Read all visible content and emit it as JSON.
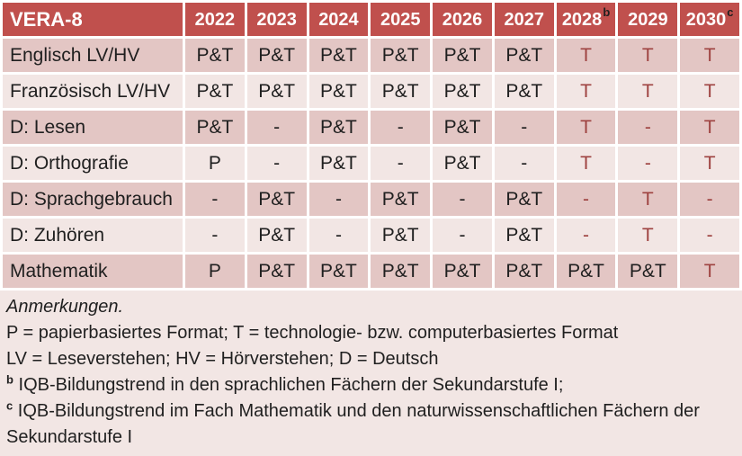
{
  "colors": {
    "header_bg": "#c0504d",
    "band_dark": "#e3c6c4",
    "band_light": "#f2e6e4",
    "highlight_text": "#9e4240",
    "text": "#1f1f1f",
    "grid_line": "#ffffff"
  },
  "table": {
    "header": {
      "label": "VERA-8",
      "years": [
        {
          "text": "2022",
          "sup": ""
        },
        {
          "text": "2023",
          "sup": ""
        },
        {
          "text": "2024",
          "sup": ""
        },
        {
          "text": "2025",
          "sup": ""
        },
        {
          "text": "2026",
          "sup": ""
        },
        {
          "text": "2027",
          "sup": ""
        },
        {
          "text": "2028",
          "sup": "b"
        },
        {
          "text": "2029",
          "sup": ""
        },
        {
          "text": "2030",
          "sup": "c"
        }
      ]
    },
    "rows": [
      {
        "label": "Englisch LV/HV",
        "cells": [
          {
            "text": "P&T",
            "highlight": false
          },
          {
            "text": "P&T",
            "highlight": false
          },
          {
            "text": "P&T",
            "highlight": false
          },
          {
            "text": "P&T",
            "highlight": false
          },
          {
            "text": "P&T",
            "highlight": false
          },
          {
            "text": "P&T",
            "highlight": false
          },
          {
            "text": "T",
            "highlight": true
          },
          {
            "text": "T",
            "highlight": true
          },
          {
            "text": "T",
            "highlight": true
          }
        ]
      },
      {
        "label": "Französisch LV/HV",
        "cells": [
          {
            "text": "P&T",
            "highlight": false
          },
          {
            "text": "P&T",
            "highlight": false
          },
          {
            "text": "P&T",
            "highlight": false
          },
          {
            "text": "P&T",
            "highlight": false
          },
          {
            "text": "P&T",
            "highlight": false
          },
          {
            "text": "P&T",
            "highlight": false
          },
          {
            "text": "T",
            "highlight": true
          },
          {
            "text": "T",
            "highlight": true
          },
          {
            "text": "T",
            "highlight": true
          }
        ]
      },
      {
        "label": "D: Lesen",
        "cells": [
          {
            "text": "P&T",
            "highlight": false
          },
          {
            "text": "-",
            "highlight": false
          },
          {
            "text": "P&T",
            "highlight": false
          },
          {
            "text": "-",
            "highlight": false
          },
          {
            "text": "P&T",
            "highlight": false
          },
          {
            "text": "-",
            "highlight": false
          },
          {
            "text": "T",
            "highlight": true
          },
          {
            "text": "-",
            "highlight": true
          },
          {
            "text": "T",
            "highlight": true
          }
        ]
      },
      {
        "label": "D: Orthografie",
        "cells": [
          {
            "text": "P",
            "highlight": false
          },
          {
            "text": "-",
            "highlight": false
          },
          {
            "text": "P&T",
            "highlight": false
          },
          {
            "text": "-",
            "highlight": false
          },
          {
            "text": "P&T",
            "highlight": false
          },
          {
            "text": "-",
            "highlight": false
          },
          {
            "text": "T",
            "highlight": true
          },
          {
            "text": "-",
            "highlight": true
          },
          {
            "text": "T",
            "highlight": true
          }
        ]
      },
      {
        "label": "D: Sprachgebrauch",
        "cells": [
          {
            "text": "-",
            "highlight": false
          },
          {
            "text": "P&T",
            "highlight": false
          },
          {
            "text": "-",
            "highlight": false
          },
          {
            "text": "P&T",
            "highlight": false
          },
          {
            "text": "-",
            "highlight": false
          },
          {
            "text": "P&T",
            "highlight": false
          },
          {
            "text": "-",
            "highlight": true
          },
          {
            "text": "T",
            "highlight": true
          },
          {
            "text": "-",
            "highlight": true
          }
        ]
      },
      {
        "label": "D: Zuhören",
        "cells": [
          {
            "text": "-",
            "highlight": false
          },
          {
            "text": "P&T",
            "highlight": false
          },
          {
            "text": "-",
            "highlight": false
          },
          {
            "text": "P&T",
            "highlight": false
          },
          {
            "text": "-",
            "highlight": false
          },
          {
            "text": "P&T",
            "highlight": false
          },
          {
            "text": "-",
            "highlight": true
          },
          {
            "text": "T",
            "highlight": true
          },
          {
            "text": "-",
            "highlight": true
          }
        ]
      },
      {
        "label": "Mathematik",
        "cells": [
          {
            "text": "P",
            "highlight": false
          },
          {
            "text": "P&T",
            "highlight": false
          },
          {
            "text": "P&T",
            "highlight": false
          },
          {
            "text": "P&T",
            "highlight": false
          },
          {
            "text": "P&T",
            "highlight": false
          },
          {
            "text": "P&T",
            "highlight": false
          },
          {
            "text": "P&T",
            "highlight": false
          },
          {
            "text": "P&T",
            "highlight": false
          },
          {
            "text": "T",
            "highlight": true
          }
        ]
      }
    ]
  },
  "notes": {
    "title": "Anmerkungen.",
    "lines": [
      "P = papierbasiertes Format; T = technologie- bzw. computerbasiertes Format",
      "LV = Leseverstehen; HV = Hörverstehen; D = Deutsch"
    ],
    "footnotes": [
      {
        "sup": "b",
        "text": "IQB-Bildungstrend in den sprachlichen Fächern der Sekundarstufe I;"
      },
      {
        "sup": "c",
        "text": "IQB-Bildungstrend im Fach Mathematik und den naturwissenschaftlichen Fächern der Sekundarstufe I"
      }
    ]
  }
}
